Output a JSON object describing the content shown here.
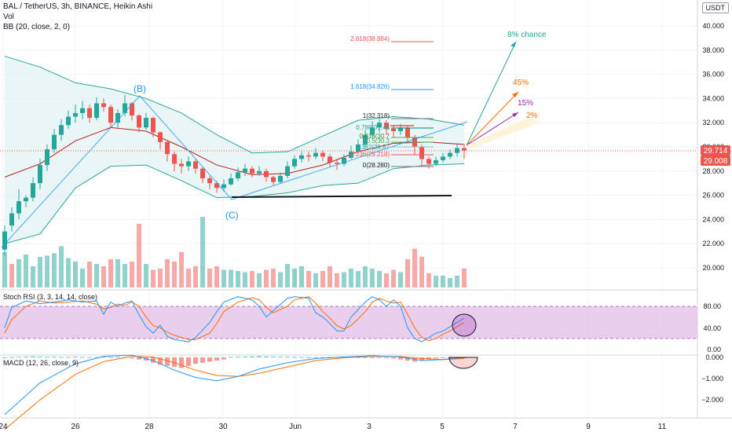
{
  "header": {
    "title": "BAL / TetherUS, 3h, BINANCE, Heikin Ashi",
    "vol_label": "Vol",
    "bb_label": "BB (20, close, 2, 0)",
    "currency_badge": "USDT"
  },
  "panes": {
    "stoch_label": "Stoch RSI (3, 3, 14, 14, close)",
    "macd_label": "MACD (12, 26, close, 9)"
  },
  "price_axis": {
    "ticks": [
      "40.000",
      "38.000",
      "36.000",
      "34.000",
      "32.000",
      "30.000",
      "28.000",
      "26.000",
      "24.000",
      "22.000",
      "20.000"
    ],
    "last_price": "29.714",
    "second_price": "29.008"
  },
  "stoch_axis": {
    "ticks": [
      "80.00",
      "40.00",
      "0.00"
    ]
  },
  "macd_axis": {
    "ticks": [
      "0.000",
      "−1.000",
      "−2.000"
    ]
  },
  "time_axis": {
    "ticks": [
      "24",
      "26",
      "28",
      "30",
      "Jun",
      "3",
      "5",
      "7",
      "9",
      "11"
    ]
  },
  "annotations": {
    "wave_b": "(B)",
    "wave_c": "(C)",
    "fib_2618": "2.618(38.884)",
    "fib_1618": "1.618(34.826)",
    "fib_1": "1(32.318)",
    "fib_0786": "0.786(31.48",
    "fib_0618": "0.618(30.7",
    "fib_05": "0.5(30.3",
    "fib_0382": "0.382(29.87",
    "fib_0236": "0.236(29.218)",
    "fib_0": "0(28.280)",
    "chance_8": "8% chance",
    "chance_45": "45%",
    "chance_15": "15%",
    "chance_2": "2%"
  },
  "colors": {
    "bull": "#26a69a",
    "bear": "#ef5350",
    "bb_band": "#26a69a",
    "bb_basis": "#b71c1c",
    "bb_fill": "#e0f2f1",
    "stoch_k": "#2196f3",
    "stoch_d": "#ff6d00",
    "stoch_band": "#e1bee7",
    "macd_line": "#2196f3",
    "macd_signal": "#ff6d00"
  },
  "chart_data": {
    "type": "candlestick",
    "price_range": [
      18.5,
      41.5
    ],
    "candles": [
      [
        21.5,
        23.0,
        21.0,
        23.5
      ],
      [
        23.5,
        24.5,
        23.0,
        25.0
      ],
      [
        24.5,
        25.5,
        24.0,
        26.5
      ],
      [
        25.5,
        25.8,
        25.0,
        26.0
      ],
      [
        25.8,
        27.0,
        25.5,
        27.5
      ],
      [
        27.0,
        28.5,
        26.5,
        29.0
      ],
      [
        28.5,
        29.8,
        28.0,
        30.2
      ],
      [
        29.8,
        31.0,
        29.5,
        31.5
      ],
      [
        31.0,
        31.8,
        30.5,
        32.3
      ],
      [
        31.8,
        32.5,
        31.5,
        33.0
      ],
      [
        32.5,
        32.8,
        32.0,
        33.5
      ],
      [
        32.8,
        33.2,
        32.3,
        33.8
      ],
      [
        33.2,
        32.4,
        32.0,
        33.5
      ],
      [
        32.4,
        33.6,
        32.2,
        34.1
      ],
      [
        33.6,
        33.3,
        32.9,
        34.0
      ],
      [
        33.3,
        32.0,
        31.6,
        33.5
      ],
      [
        32.0,
        32.8,
        31.6,
        33.1
      ],
      [
        32.8,
        33.6,
        32.5,
        34.3
      ],
      [
        33.6,
        32.6,
        32.2,
        33.7
      ],
      [
        32.6,
        31.6,
        31.2,
        32.7
      ],
      [
        31.6,
        32.4,
        31.4,
        32.8
      ],
      [
        32.4,
        31.2,
        30.8,
        32.5
      ],
      [
        31.2,
        30.4,
        29.8,
        31.3
      ],
      [
        30.4,
        29.4,
        28.8,
        30.5
      ],
      [
        29.4,
        28.6,
        28.0,
        29.6
      ],
      [
        28.6,
        28.4,
        27.8,
        29.0
      ],
      [
        28.4,
        28.8,
        28.0,
        29.2
      ],
      [
        28.8,
        28.2,
        27.8,
        29.0
      ],
      [
        28.2,
        27.4,
        27.0,
        28.4
      ],
      [
        27.4,
        27.0,
        26.5,
        27.6
      ],
      [
        27.0,
        26.6,
        26.2,
        27.2
      ],
      [
        26.6,
        26.9,
        26.3,
        27.3
      ],
      [
        26.9,
        27.4,
        26.8,
        27.8
      ],
      [
        27.4,
        27.9,
        27.2,
        28.3
      ],
      [
        27.9,
        28.2,
        27.6,
        28.6
      ],
      [
        28.2,
        27.8,
        27.5,
        28.4
      ],
      [
        27.8,
        28.0,
        27.6,
        28.4
      ],
      [
        28.0,
        27.5,
        27.1,
        28.2
      ],
      [
        27.5,
        27.1,
        26.8,
        27.6
      ],
      [
        27.1,
        27.6,
        27.0,
        27.9
      ],
      [
        27.6,
        28.4,
        27.4,
        28.8
      ],
      [
        28.4,
        29.0,
        28.2,
        29.3
      ],
      [
        29.0,
        29.3,
        28.7,
        29.6
      ],
      [
        29.3,
        29.2,
        28.8,
        29.6
      ],
      [
        29.2,
        29.5,
        29.0,
        29.9
      ],
      [
        29.5,
        29.2,
        28.8,
        29.7
      ],
      [
        29.2,
        28.7,
        28.3,
        29.4
      ],
      [
        28.7,
        28.6,
        28.1,
        29.0
      ],
      [
        28.6,
        29.1,
        28.4,
        29.4
      ],
      [
        29.1,
        29.6,
        29.0,
        30.1
      ],
      [
        29.6,
        30.2,
        29.4,
        30.6
      ],
      [
        30.2,
        31.0,
        30.0,
        31.4
      ],
      [
        31.0,
        31.6,
        30.8,
        32.1
      ],
      [
        31.6,
        32.0,
        31.2,
        32.3
      ],
      [
        32.0,
        31.5,
        31.0,
        32.2
      ],
      [
        31.5,
        31.3,
        30.8,
        31.8
      ],
      [
        31.3,
        31.6,
        31.0,
        31.9
      ],
      [
        31.6,
        30.8,
        30.3,
        31.8
      ],
      [
        30.8,
        30.0,
        29.3,
        31.0
      ],
      [
        30.0,
        29.0,
        28.4,
        30.2
      ],
      [
        29.0,
        28.6,
        28.2,
        29.2
      ],
      [
        28.6,
        28.9,
        28.4,
        29.2
      ],
      [
        28.9,
        29.2,
        28.7,
        29.5
      ],
      [
        29.2,
        29.5,
        29.0,
        29.8
      ],
      [
        29.5,
        29.9,
        29.2,
        30.3
      ],
      [
        29.9,
        29.7,
        29.0,
        30.2
      ]
    ],
    "bb_upper": [
      [
        0,
        37.5
      ],
      [
        5,
        36.6
      ],
      [
        10,
        35.3
      ],
      [
        15,
        34.8
      ],
      [
        20,
        34.0
      ],
      [
        25,
        32.8
      ],
      [
        30,
        31.0
      ],
      [
        35,
        29.5
      ],
      [
        40,
        29.6
      ],
      [
        45,
        30.9
      ],
      [
        50,
        32.2
      ],
      [
        55,
        32.5
      ],
      [
        60,
        32.3
      ],
      [
        65,
        31.8
      ]
    ],
    "bb_basis": [
      [
        0,
        27.5
      ],
      [
        5,
        28.6
      ],
      [
        10,
        30.5
      ],
      [
        15,
        31.6
      ],
      [
        20,
        31.3
      ],
      [
        25,
        30.0
      ],
      [
        30,
        28.5
      ],
      [
        35,
        27.7
      ],
      [
        40,
        27.8
      ],
      [
        45,
        28.5
      ],
      [
        50,
        29.6
      ],
      [
        55,
        30.3
      ],
      [
        60,
        30.4
      ],
      [
        65,
        30.2
      ]
    ],
    "bb_lower": [
      [
        0,
        22.0
      ],
      [
        5,
        22.8
      ],
      [
        10,
        26.6
      ],
      [
        15,
        28.4
      ],
      [
        20,
        28.5
      ],
      [
        25,
        27.2
      ],
      [
        30,
        25.8
      ],
      [
        35,
        25.9
      ],
      [
        40,
        26.2
      ],
      [
        45,
        26.8
      ],
      [
        50,
        27.0
      ],
      [
        55,
        28.2
      ],
      [
        60,
        28.5
      ],
      [
        65,
        28.6
      ]
    ],
    "volume": [
      [
        3.0,
        0
      ],
      [
        2.0,
        1
      ],
      [
        2.4,
        0
      ],
      [
        2.8,
        0
      ],
      [
        1.8,
        0
      ],
      [
        2.6,
        0
      ],
      [
        2.7,
        0
      ],
      [
        2.9,
        0
      ],
      [
        3.5,
        0
      ],
      [
        2.5,
        0
      ],
      [
        2.2,
        0
      ],
      [
        1.6,
        0
      ],
      [
        2.2,
        1
      ],
      [
        2.0,
        0
      ],
      [
        1.8,
        1
      ],
      [
        2.4,
        1
      ],
      [
        2.4,
        0
      ],
      [
        2.0,
        0
      ],
      [
        2.2,
        1
      ],
      [
        5.4,
        1
      ],
      [
        2.0,
        0
      ],
      [
        1.5,
        1
      ],
      [
        1.6,
        1
      ],
      [
        2.4,
        1
      ],
      [
        2.2,
        1
      ],
      [
        3.0,
        1
      ],
      [
        1.6,
        1
      ],
      [
        1.8,
        1
      ],
      [
        6.0,
        0
      ],
      [
        1.6,
        1
      ],
      [
        1.8,
        1
      ],
      [
        1.5,
        0
      ],
      [
        1.5,
        0
      ],
      [
        1.4,
        0
      ],
      [
        1.3,
        0
      ],
      [
        1.4,
        1
      ],
      [
        1.2,
        0
      ],
      [
        1.5,
        1
      ],
      [
        1.6,
        1
      ],
      [
        1.3,
        0
      ],
      [
        2.0,
        0
      ],
      [
        1.6,
        0
      ],
      [
        1.8,
        0
      ],
      [
        1.4,
        1
      ],
      [
        1.2,
        0
      ],
      [
        1.4,
        1
      ],
      [
        1.8,
        1
      ],
      [
        1.2,
        1
      ],
      [
        1.3,
        0
      ],
      [
        1.6,
        0
      ],
      [
        1.4,
        0
      ],
      [
        1.8,
        0
      ],
      [
        1.6,
        0
      ],
      [
        1.4,
        0
      ],
      [
        1.2,
        1
      ],
      [
        1.5,
        1
      ],
      [
        1.3,
        0
      ],
      [
        2.4,
        1
      ],
      [
        3.3,
        1
      ],
      [
        2.6,
        1
      ],
      [
        1.2,
        1
      ],
      [
        1.0,
        0
      ],
      [
        1.0,
        0
      ],
      [
        0.8,
        0
      ],
      [
        1.0,
        0
      ],
      [
        1.6,
        1
      ]
    ],
    "stoch_k": [
      [
        0,
        40
      ],
      [
        1,
        78
      ],
      [
        3,
        90
      ],
      [
        5,
        85
      ],
      [
        7,
        88
      ],
      [
        9,
        92
      ],
      [
        11,
        88
      ],
      [
        13,
        90
      ],
      [
        14,
        65
      ],
      [
        15,
        88
      ],
      [
        16,
        80
      ],
      [
        17,
        86
      ],
      [
        18,
        90
      ],
      [
        19,
        64
      ],
      [
        20,
        42
      ],
      [
        21,
        30
      ],
      [
        22,
        45
      ],
      [
        23,
        24
      ],
      [
        24,
        18
      ],
      [
        26,
        14
      ],
      [
        27,
        22
      ],
      [
        29,
        50
      ],
      [
        30,
        70
      ],
      [
        31,
        88
      ],
      [
        33,
        98
      ],
      [
        35,
        92
      ],
      [
        36,
        80
      ],
      [
        37,
        60
      ],
      [
        38,
        72
      ],
      [
        40,
        95
      ],
      [
        41,
        98
      ],
      [
        43,
        95
      ],
      [
        44,
        68
      ],
      [
        45,
        60
      ],
      [
        46,
        48
      ],
      [
        47,
        34
      ],
      [
        48,
        34
      ],
      [
        49,
        60
      ],
      [
        51,
        88
      ],
      [
        52,
        98
      ],
      [
        53,
        92
      ],
      [
        54,
        80
      ],
      [
        55,
        92
      ],
      [
        56,
        80
      ],
      [
        57,
        40
      ],
      [
        58,
        20
      ],
      [
        59,
        14
      ],
      [
        60,
        22
      ],
      [
        61,
        30
      ],
      [
        62,
        34
      ],
      [
        63,
        42
      ],
      [
        64,
        50
      ],
      [
        65,
        58
      ]
    ],
    "stoch_d": [
      [
        0,
        30
      ],
      [
        1,
        55
      ],
      [
        3,
        80
      ],
      [
        5,
        90
      ],
      [
        7,
        86
      ],
      [
        9,
        88
      ],
      [
        11,
        90
      ],
      [
        13,
        84
      ],
      [
        14,
        75
      ],
      [
        15,
        78
      ],
      [
        16,
        84
      ],
      [
        17,
        82
      ],
      [
        18,
        88
      ],
      [
        19,
        80
      ],
      [
        20,
        60
      ],
      [
        21,
        44
      ],
      [
        22,
        40
      ],
      [
        23,
        32
      ],
      [
        24,
        26
      ],
      [
        26,
        18
      ],
      [
        27,
        18
      ],
      [
        29,
        30
      ],
      [
        30,
        48
      ],
      [
        31,
        70
      ],
      [
        33,
        88
      ],
      [
        35,
        96
      ],
      [
        36,
        92
      ],
      [
        37,
        78
      ],
      [
        38,
        68
      ],
      [
        40,
        80
      ],
      [
        41,
        92
      ],
      [
        43,
        98
      ],
      [
        44,
        86
      ],
      [
        45,
        70
      ],
      [
        46,
        58
      ],
      [
        47,
        44
      ],
      [
        48,
        38
      ],
      [
        49,
        44
      ],
      [
        51,
        70
      ],
      [
        52,
        88
      ],
      [
        53,
        95
      ],
      [
        54,
        90
      ],
      [
        55,
        86
      ],
      [
        56,
        88
      ],
      [
        57,
        65
      ],
      [
        58,
        40
      ],
      [
        59,
        22
      ],
      [
        60,
        16
      ],
      [
        61,
        20
      ],
      [
        62,
        28
      ],
      [
        63,
        34
      ],
      [
        64,
        42
      ],
      [
        65,
        50
      ]
    ],
    "macd": [
      [
        0,
        -2.7
      ],
      [
        5,
        -1.2
      ],
      [
        10,
        -0.3
      ],
      [
        14,
        0.05
      ],
      [
        18,
        0.1
      ],
      [
        21,
        -0.15
      ],
      [
        24,
        -0.6
      ],
      [
        27,
        -0.95
      ],
      [
        30,
        -1.1
      ],
      [
        33,
        -0.9
      ],
      [
        36,
        -0.55
      ],
      [
        40,
        -0.25
      ],
      [
        44,
        -0.05
      ],
      [
        48,
        0.02
      ],
      [
        52,
        0.08
      ],
      [
        56,
        0.02
      ],
      [
        59,
        -0.15
      ],
      [
        62,
        -0.1
      ],
      [
        65,
        0.0
      ]
    ],
    "macd_signal": [
      [
        0,
        -3.4
      ],
      [
        5,
        -2.0
      ],
      [
        10,
        -0.8
      ],
      [
        14,
        -0.2
      ],
      [
        18,
        0.05
      ],
      [
        21,
        0.02
      ],
      [
        24,
        -0.25
      ],
      [
        27,
        -0.6
      ],
      [
        30,
        -0.85
      ],
      [
        33,
        -0.9
      ],
      [
        36,
        -0.75
      ],
      [
        40,
        -0.45
      ],
      [
        44,
        -0.15
      ],
      [
        48,
        -0.02
      ],
      [
        52,
        0.05
      ],
      [
        56,
        0.04
      ],
      [
        59,
        -0.05
      ],
      [
        62,
        -0.1
      ],
      [
        65,
        -0.05
      ]
    ],
    "macd_hist": [
      [
        0.0,
        0
      ],
      [
        0.02,
        0
      ],
      [
        0.03,
        0
      ],
      [
        0.04,
        0
      ],
      [
        0.05,
        0
      ],
      [
        0.04,
        0
      ],
      [
        0.03,
        0
      ],
      [
        0.03,
        0
      ],
      [
        0.02,
        0
      ],
      [
        0.02,
        0
      ],
      [
        0.03,
        0
      ],
      [
        0.02,
        0
      ],
      [
        0.01,
        0
      ],
      [
        0.01,
        0
      ],
      [
        0.02,
        0
      ],
      [
        0.01,
        0
      ],
      [
        0.02,
        0
      ],
      [
        0.01,
        0
      ],
      [
        -0.05,
        1
      ],
      [
        -0.1,
        1
      ],
      [
        -0.15,
        1
      ],
      [
        -0.25,
        1
      ],
      [
        -0.35,
        1
      ],
      [
        -0.4,
        1
      ],
      [
        -0.45,
        1
      ],
      [
        -0.5,
        1
      ],
      [
        -0.4,
        1
      ],
      [
        -0.3,
        1
      ],
      [
        -0.25,
        1
      ],
      [
        -0.2,
        1
      ],
      [
        -0.15,
        1
      ],
      [
        -0.1,
        1
      ],
      [
        0.02,
        0
      ],
      [
        0.03,
        0
      ],
      [
        0.04,
        0
      ],
      [
        0.05,
        0
      ],
      [
        0.06,
        0
      ],
      [
        0.05,
        0
      ],
      [
        0.04,
        0
      ],
      [
        0.03,
        0
      ],
      [
        0.03,
        0
      ],
      [
        0.02,
        0
      ],
      [
        0.02,
        0
      ],
      [
        0.01,
        0
      ],
      [
        0.01,
        0
      ],
      [
        0.01,
        0
      ],
      [
        0.02,
        0
      ],
      [
        0.02,
        0
      ],
      [
        0.03,
        0
      ],
      [
        0.02,
        0
      ],
      [
        0.01,
        0
      ],
      [
        -0.01,
        1
      ],
      [
        -0.02,
        1
      ],
      [
        -0.03,
        1
      ],
      [
        -0.04,
        1
      ],
      [
        -0.05,
        1
      ],
      [
        -0.1,
        1
      ],
      [
        -0.15,
        1
      ],
      [
        -0.2,
        1
      ],
      [
        -0.15,
        1
      ],
      [
        -0.1,
        1
      ],
      [
        -0.05,
        1
      ],
      [
        -0.03,
        1
      ],
      [
        -0.02,
        1
      ],
      [
        -0.01,
        1
      ],
      [
        0.0,
        0
      ]
    ],
    "fib_levels": [
      38.884,
      34.826,
      32.318,
      31.48,
      30.7,
      30.3,
      29.87,
      29.218,
      28.28
    ],
    "support_level": 26.0,
    "stoch_band": [
      20,
      80
    ]
  }
}
